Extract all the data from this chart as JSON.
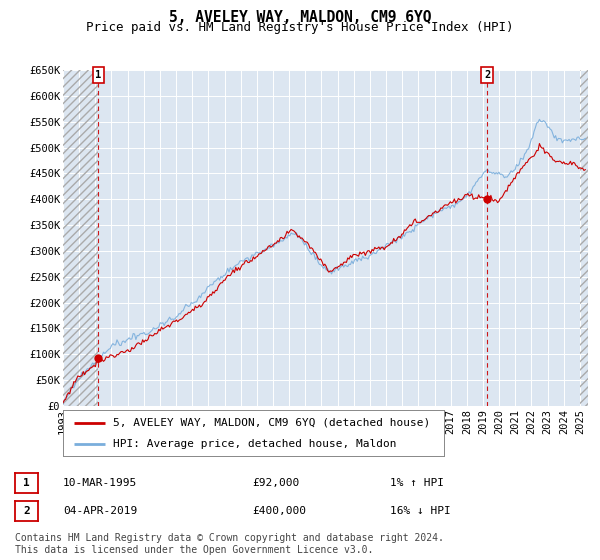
{
  "title": "5, AVELEY WAY, MALDON, CM9 6YQ",
  "subtitle": "Price paid vs. HM Land Registry's House Price Index (HPI)",
  "ylabel_ticks": [
    "£0",
    "£50K",
    "£100K",
    "£150K",
    "£200K",
    "£250K",
    "£300K",
    "£350K",
    "£400K",
    "£450K",
    "£500K",
    "£550K",
    "£600K",
    "£650K"
  ],
  "ytick_vals": [
    0,
    50000,
    100000,
    150000,
    200000,
    250000,
    300000,
    350000,
    400000,
    450000,
    500000,
    550000,
    600000,
    650000
  ],
  "ylim": [
    0,
    650000
  ],
  "xlim_start": 1993.0,
  "xlim_end": 2025.5,
  "bg_color": "#dce6f1",
  "hatch_color": "#bbbbbb",
  "grid_color": "#ffffff",
  "hpi_line_color": "#7aaedc",
  "price_line_color": "#cc0000",
  "marker_color": "#cc0000",
  "vline_color": "#cc0000",
  "sale1_date": 1995.19,
  "sale1_price": 92000,
  "sale1_label": "1",
  "sale1_text": "10-MAR-1995",
  "sale1_amount": "£92,000",
  "sale1_hpi": "1% ↑ HPI",
  "sale2_date": 2019.25,
  "sale2_price": 400000,
  "sale2_label": "2",
  "sale2_text": "04-APR-2019",
  "sale2_amount": "£400,000",
  "sale2_hpi": "16% ↓ HPI",
  "legend_line1": "5, AVELEY WAY, MALDON, CM9 6YQ (detached house)",
  "legend_line2": "HPI: Average price, detached house, Maldon",
  "footer": "Contains HM Land Registry data © Crown copyright and database right 2024.\nThis data is licensed under the Open Government Licence v3.0.",
  "title_fontsize": 10.5,
  "subtitle_fontsize": 9,
  "tick_fontsize": 7.5,
  "legend_fontsize": 8,
  "footer_fontsize": 7
}
